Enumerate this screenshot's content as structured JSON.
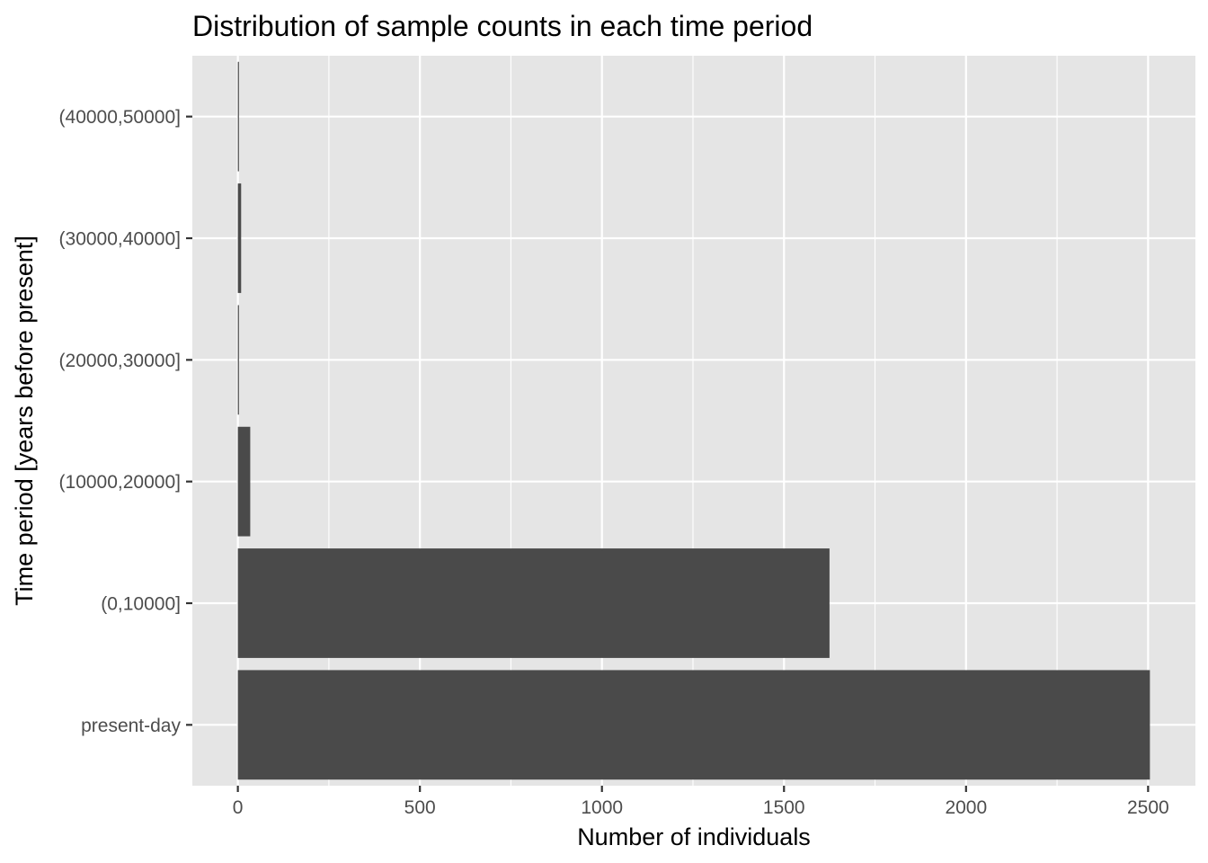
{
  "chart_data": {
    "type": "bar",
    "orientation": "horizontal",
    "title": "Distribution of sample counts in each time period",
    "xlabel": "Number of individuals",
    "ylabel": "Time period [years before present]",
    "categories": [
      "present-day",
      "(0,10000]",
      "(10000,20000]",
      "(20000,30000]",
      "(30000,40000]",
      "(40000,50000]"
    ],
    "values": [
      2505,
      1625,
      34,
      3,
      9,
      3
    ],
    "x_ticks": [
      "0",
      "500",
      "1000",
      "1500",
      "2000",
      "2500"
    ],
    "x_tick_values": [
      0,
      500,
      1000,
      1500,
      2000,
      2500
    ],
    "xlim": [
      -125,
      2630
    ],
    "grid": true,
    "legend": "none",
    "colors": {
      "panel_background": "#e5e5e5",
      "grid_line": "#ffffff",
      "bar": "#4a4a4a",
      "tick_label": "#4d4d4d",
      "tick_mark": "#333333"
    }
  }
}
